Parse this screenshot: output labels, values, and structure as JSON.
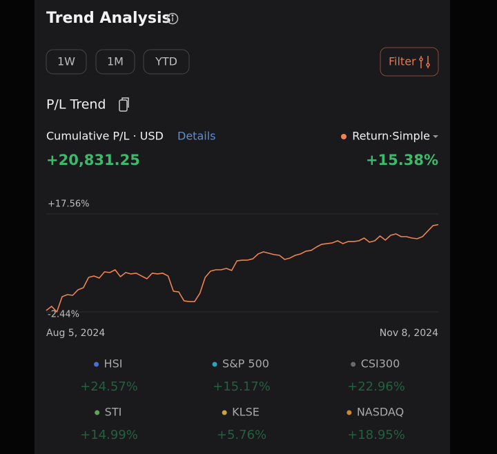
{
  "header": {
    "title": "Trend Analysis"
  },
  "periods": [
    "1W",
    "1M",
    "YTD"
  ],
  "filter": "Filter",
  "section_title": "P/L Trend",
  "cumulative_label": "Cumulative P/L · USD",
  "details": "Details",
  "return_label": "Return·Simple",
  "pl_value": "+20,831.25",
  "return_value": "+15.38%",
  "chart_data": {
    "type": "line",
    "categories": [
      "Aug 5, 2024",
      null,
      null,
      null,
      null,
      null,
      null,
      null,
      null,
      null,
      null,
      null,
      null,
      null,
      null,
      null,
      null,
      null,
      null,
      null,
      null,
      null,
      null,
      null,
      null,
      null,
      null,
      null,
      null,
      null,
      null,
      null,
      null,
      null,
      null,
      null,
      null,
      null,
      null,
      null,
      null,
      null,
      null,
      null,
      null,
      null,
      null,
      null,
      null,
      null,
      null,
      null,
      null,
      null,
      null,
      null,
      null,
      null,
      null,
      null,
      null,
      null,
      null,
      null,
      null,
      null,
      null,
      null,
      null,
      null,
      null,
      null,
      null,
      null,
      "Nov 8, 2024"
    ],
    "values": [
      -2.16,
      -1.31,
      -2.44,
      0.66,
      1.08,
      0.94,
      2.07,
      2.49,
      4.6,
      4.88,
      4.46,
      5.73,
      5.59,
      6.15,
      4.74,
      5.59,
      5.31,
      5.45,
      4.88,
      4.32,
      5.45,
      5.31,
      5.45,
      4.88,
      1.78,
      1.64,
      -0.19,
      -0.33,
      -0.33,
      1.36,
      4.6,
      5.87,
      6.15,
      6.15,
      6.43,
      6.01,
      7.98,
      8.12,
      8.12,
      8.4,
      9.39,
      9.81,
      9.53,
      9.25,
      9.11,
      8.26,
      8.55,
      9.11,
      9.39,
      9.95,
      10.1,
      10.8,
      11.36,
      11.5,
      11.64,
      12.07,
      11.5,
      11.92,
      11.92,
      12.07,
      12.63,
      11.79,
      12.07,
      13.05,
      12.21,
      13.19,
      13.48,
      12.91,
      12.91,
      12.63,
      12.49,
      12.91,
      14.04,
      15.17,
      15.38
    ],
    "color": "#ef8354",
    "ylim": [
      -2.44,
      17.56
    ],
    "yticks": [
      {
        "value": 17.56,
        "label": "+17.56%"
      },
      {
        "value": -2.44,
        "label": "-2.44%"
      }
    ],
    "grid": true
  },
  "indices": [
    {
      "name": "HSI",
      "color": "#4a6fd6",
      "change": "+24.57%"
    },
    {
      "name": "S&P 500",
      "color": "#2aa6b8",
      "change": "+15.17%"
    },
    {
      "name": "CSI300",
      "color": "#6a6a6e",
      "change": "+22.96%"
    },
    {
      "name": "STI",
      "color": "#5da35a",
      "change": "+14.99%"
    },
    {
      "name": "KLSE",
      "color": "#c9a43c",
      "change": "+5.76%"
    },
    {
      "name": "NASDAQ",
      "color": "#c98a2e",
      "change": "+18.95%"
    }
  ]
}
